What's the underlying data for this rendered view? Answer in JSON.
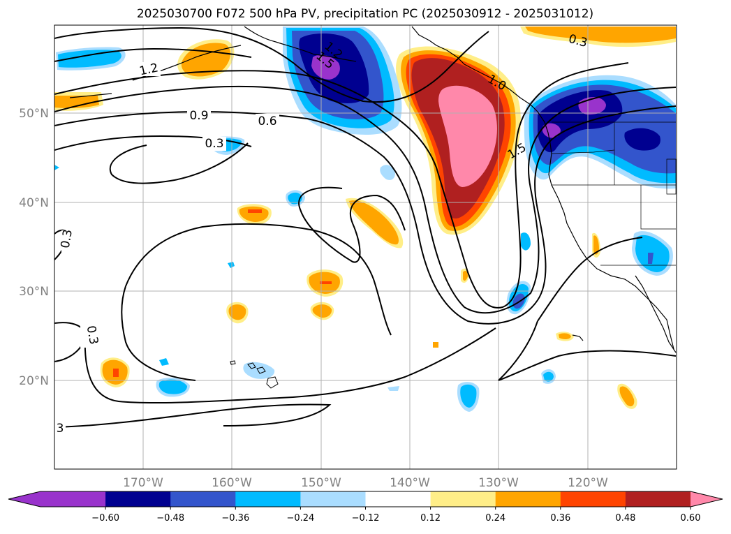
{
  "title": "2025030700 F072 500 hPa PV, precipitation PC (2025030912 - 2025031012)",
  "axes": {
    "lon_labels": [
      "170°W",
      "160°W",
      "150°W",
      "140°W",
      "130°W",
      "120°W"
    ],
    "lat_labels": [
      "50°N",
      "40°N",
      "30°N",
      "20°N"
    ]
  },
  "contour_labels": [
    "1.2",
    "1.5",
    "1.2",
    "0.9",
    "0.6",
    "0.3",
    "0.3",
    "0.3",
    "3",
    "1.5",
    "0.3",
    "1.0"
  ],
  "colorbar": {
    "ticks": [
      "−0.60",
      "−0.48",
      "−0.36",
      "−0.24",
      "−0.12",
      "0.12",
      "0.24",
      "0.36",
      "0.48",
      "0.60"
    ],
    "colors": [
      "#9933cc",
      "#000090",
      "#3355cc",
      "#00bbff",
      "#aaddff",
      "#ffffff",
      "#ffee88",
      "#ffa500",
      "#ff4400",
      "#b02020",
      "#ff88aa",
      "#ff88aa"
    ]
  }
}
